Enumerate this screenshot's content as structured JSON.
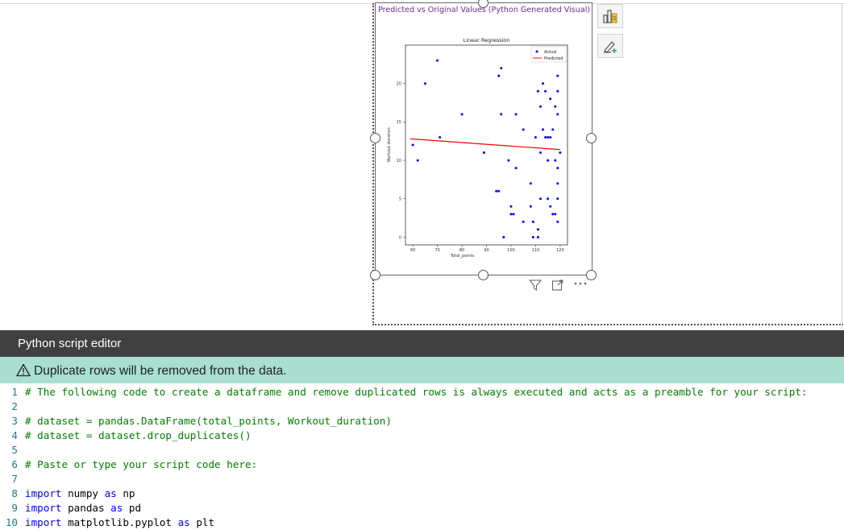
{
  "visual": {
    "title": "Predicted vs Original Values (Python Generated Visual)"
  },
  "chart_data": {
    "type": "scatter",
    "title": "Linear Regression",
    "xlabel": "Total_points",
    "ylabel": "Workout duration",
    "xlim": [
      57,
      123
    ],
    "ylim": [
      -1,
      25
    ],
    "xticks": [
      60,
      70,
      80,
      90,
      100,
      110,
      120
    ],
    "yticks": [
      0,
      5,
      10,
      15,
      20
    ],
    "legend": {
      "position": "top-right",
      "entries": [
        "Actual",
        "Predicted"
      ]
    },
    "colors": {
      "actual": "#0000ff",
      "predicted": "#ff0000"
    },
    "series": [
      {
        "name": "Actual",
        "kind": "scatter",
        "points": [
          [
            60,
            12
          ],
          [
            62,
            10
          ],
          [
            65,
            20
          ],
          [
            70,
            23
          ],
          [
            71,
            13
          ],
          [
            80,
            16
          ],
          [
            89,
            11
          ],
          [
            94,
            6
          ],
          [
            95,
            6
          ],
          [
            95,
            21
          ],
          [
            96,
            22
          ],
          [
            96,
            16
          ],
          [
            97,
            0
          ],
          [
            99,
            10
          ],
          [
            100,
            3
          ],
          [
            100,
            4
          ],
          [
            101,
            3
          ],
          [
            102,
            16
          ],
          [
            102,
            9
          ],
          [
            105,
            2
          ],
          [
            105,
            14
          ],
          [
            108,
            7
          ],
          [
            108,
            4
          ],
          [
            109,
            0
          ],
          [
            109,
            2
          ],
          [
            110,
            13
          ],
          [
            111,
            0
          ],
          [
            111,
            19
          ],
          [
            111,
            1
          ],
          [
            112,
            11
          ],
          [
            112,
            5
          ],
          [
            112,
            17
          ],
          [
            113,
            20
          ],
          [
            113,
            14
          ],
          [
            114,
            13
          ],
          [
            114,
            19
          ],
          [
            115,
            5
          ],
          [
            115,
            13
          ],
          [
            115,
            10
          ],
          [
            116,
            13
          ],
          [
            116,
            4
          ],
          [
            116,
            18
          ],
          [
            117,
            3
          ],
          [
            117,
            14
          ],
          [
            118,
            10
          ],
          [
            118,
            17
          ],
          [
            118,
            3
          ],
          [
            119,
            9
          ],
          [
            119,
            2
          ],
          [
            119,
            5
          ],
          [
            119,
            16
          ],
          [
            119,
            7
          ],
          [
            119,
            19
          ],
          [
            119,
            21
          ],
          [
            119,
            23
          ],
          [
            120,
            11
          ]
        ]
      },
      {
        "name": "Predicted",
        "kind": "line",
        "points": [
          [
            59,
            12.8
          ],
          [
            120,
            11.4
          ]
        ]
      }
    ]
  },
  "editor": {
    "title": "Python script editor",
    "warning": "Duplicate rows will be removed from the data."
  },
  "code_lines": [
    {
      "num": "1",
      "kind": "comment",
      "text": "# The following code to create a dataframe and remove duplicated rows is always executed and acts as a preamble for your script:"
    },
    {
      "num": "2",
      "kind": "blank",
      "text": ""
    },
    {
      "num": "3",
      "kind": "comment",
      "text": "# dataset = pandas.DataFrame(total_points, Workout_duration)"
    },
    {
      "num": "4",
      "kind": "comment",
      "text": "# dataset = dataset.drop_duplicates()"
    },
    {
      "num": "5",
      "kind": "blank",
      "text": ""
    },
    {
      "num": "6",
      "kind": "comment",
      "text": "# Paste or type your script code here:"
    },
    {
      "num": "7",
      "kind": "blank",
      "text": ""
    },
    {
      "num": "8",
      "kind": "import",
      "text": "import",
      "rest": " numpy ",
      "kw2": "as",
      "alias": " np"
    },
    {
      "num": "9",
      "kind": "import",
      "text": "import",
      "rest": " pandas ",
      "kw2": "as",
      "alias": " pd"
    },
    {
      "num": "10",
      "kind": "import",
      "text": "import",
      "rest": " matplotlib.pyplot ",
      "kw2": "as",
      "alias": " plt"
    }
  ]
}
